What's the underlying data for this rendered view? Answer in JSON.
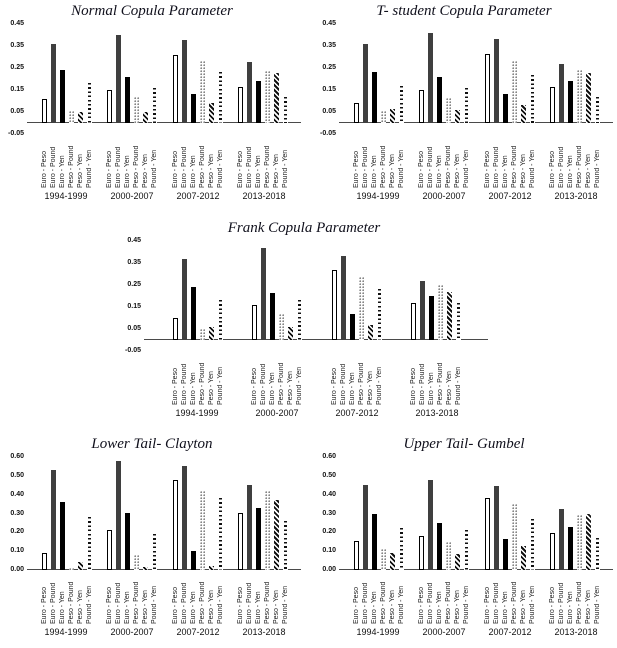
{
  "page": {
    "background": "#ffffff",
    "figure_kind": "five grouped bar charts of copula parameters"
  },
  "series_styles": [
    {
      "category": "Euro - Peso",
      "fill": "hollow-white-black-outline",
      "color": "#000000"
    },
    {
      "category": "Euro - Pound",
      "fill": "solid-dark-gray",
      "color": "#3f3f3f"
    },
    {
      "category": "Euro - Yen",
      "fill": "solid-black",
      "color": "#000000"
    },
    {
      "category": "Peso - Pound",
      "fill": "dotted-light-circle-column",
      "color": "#858585"
    },
    {
      "category": "Peso - Yen",
      "fill": "diagonal-dark-stripes",
      "color": "#101010"
    },
    {
      "category": "Pound - Yen",
      "fill": "dashed-dark-column",
      "color": "#101010"
    }
  ],
  "chart_data": [
    {
      "type": "bar",
      "title": "Normal Copula Parameter",
      "groups": [
        "1994-1999",
        "2000-2007",
        "2007-2012",
        "2013-2018"
      ],
      "categories": [
        "Euro - Peso",
        "Euro - Pound",
        "Euro - Yen",
        "Peso - Pound",
        "Peso - Yen",
        "Pound - Yen"
      ],
      "ylim": [
        -0.05,
        0.45
      ],
      "yticks": [
        "0.45",
        "0.35",
        "0.25",
        "0.15",
        "0.05",
        "-0.05"
      ],
      "grid": false,
      "legend": false,
      "values": [
        [
          0.11,
          0.36,
          0.24,
          0.055,
          0.05,
          0.18
        ],
        [
          0.15,
          0.4,
          0.21,
          0.12,
          0.05,
          0.16
        ],
        [
          0.31,
          0.375,
          0.13,
          0.28,
          0.09,
          0.23
        ],
        [
          0.165,
          0.275,
          0.19,
          0.235,
          0.225,
          0.12
        ]
      ]
    },
    {
      "type": "bar",
      "title": "T- student Copula Parameter",
      "groups": [
        "1994-1999",
        "2000-2007",
        "2007-2012",
        "2013-2018"
      ],
      "categories": [
        "Euro - Peso",
        "Euro - Pound",
        "Euro - Yen",
        "Peso - Pound",
        "Peso - Yen",
        "Pound - Yen"
      ],
      "ylim": [
        -0.05,
        0.45
      ],
      "yticks": [
        "0.45",
        "0.35",
        "0.25",
        "0.15",
        "0.05",
        "-0.05"
      ],
      "grid": false,
      "legend": false,
      "values": [
        [
          0.09,
          0.36,
          0.23,
          0.055,
          0.065,
          0.17
        ],
        [
          0.15,
          0.41,
          0.21,
          0.115,
          0.06,
          0.16
        ],
        [
          0.315,
          0.38,
          0.13,
          0.28,
          0.08,
          0.22
        ],
        [
          0.165,
          0.27,
          0.19,
          0.24,
          0.225,
          0.12
        ]
      ]
    },
    {
      "type": "bar",
      "title": "Frank Copula Parameter",
      "groups": [
        "1994-1999",
        "2000-2007",
        "2007-2012",
        "2013-2018"
      ],
      "categories": [
        "Euro - Peso",
        "Euro - Pound",
        "Euro - Yen",
        "Peso - Pound",
        "Peso - Yen",
        "Pound - Yen"
      ],
      "ylim": [
        -0.05,
        0.45
      ],
      "yticks": [
        "0.45",
        "0.35",
        "0.25",
        "0.15",
        "0.05",
        "-0.05"
      ],
      "grid": false,
      "legend": false,
      "values": [
        [
          0.1,
          0.37,
          0.24,
          0.05,
          0.06,
          0.18
        ],
        [
          0.16,
          0.42,
          0.215,
          0.12,
          0.06,
          0.18
        ],
        [
          0.32,
          0.38,
          0.12,
          0.285,
          0.07,
          0.23
        ],
        [
          0.17,
          0.27,
          0.2,
          0.25,
          0.22,
          0.17
        ]
      ]
    },
    {
      "type": "bar",
      "title": "Lower Tail- Clayton",
      "groups": [
        "1994-1999",
        "2000-2007",
        "2007-2012",
        "2013-2018"
      ],
      "categories": [
        "Euro - Peso",
        "Euro - Pound",
        "Euro - Yen",
        "Peso - Pound",
        "Peso - Yen",
        "Pound - Yen"
      ],
      "ylim": [
        0.0,
        0.6
      ],
      "yticks": [
        "0.60",
        "0.50",
        "0.40",
        "0.30",
        "0.20",
        "0.10",
        "0.00"
      ],
      "grid": false,
      "legend": false,
      "values": [
        [
          0.09,
          0.53,
          0.36,
          0.01,
          0.04,
          0.28
        ],
        [
          0.21,
          0.58,
          0.3,
          0.08,
          0.015,
          0.19
        ],
        [
          0.48,
          0.55,
          0.1,
          0.42,
          0.02,
          0.38
        ],
        [
          0.3,
          0.45,
          0.33,
          0.42,
          0.37,
          0.26
        ]
      ]
    },
    {
      "type": "bar",
      "title": "Upper Tail- Gumbel",
      "groups": [
        "1994-1999",
        "2000-2007",
        "2007-2012",
        "2013-2018"
      ],
      "categories": [
        "Euro - Peso",
        "Euro - Pound",
        "Euro - Yen",
        "Peso - Pound",
        "Peso - Yen",
        "Pound - Yen"
      ],
      "ylim": [
        0.0,
        0.6
      ],
      "yticks": [
        "0.60",
        "0.50",
        "0.40",
        "0.30",
        "0.20",
        "0.10",
        "0.00"
      ],
      "grid": false,
      "legend": false,
      "values": [
        [
          0.155,
          0.45,
          0.295,
          0.11,
          0.09,
          0.225
        ],
        [
          0.18,
          0.48,
          0.25,
          0.15,
          0.085,
          0.21
        ],
        [
          0.38,
          0.445,
          0.165,
          0.35,
          0.125,
          0.27
        ],
        [
          0.195,
          0.325,
          0.23,
          0.29,
          0.295,
          0.17
        ]
      ]
    }
  ]
}
